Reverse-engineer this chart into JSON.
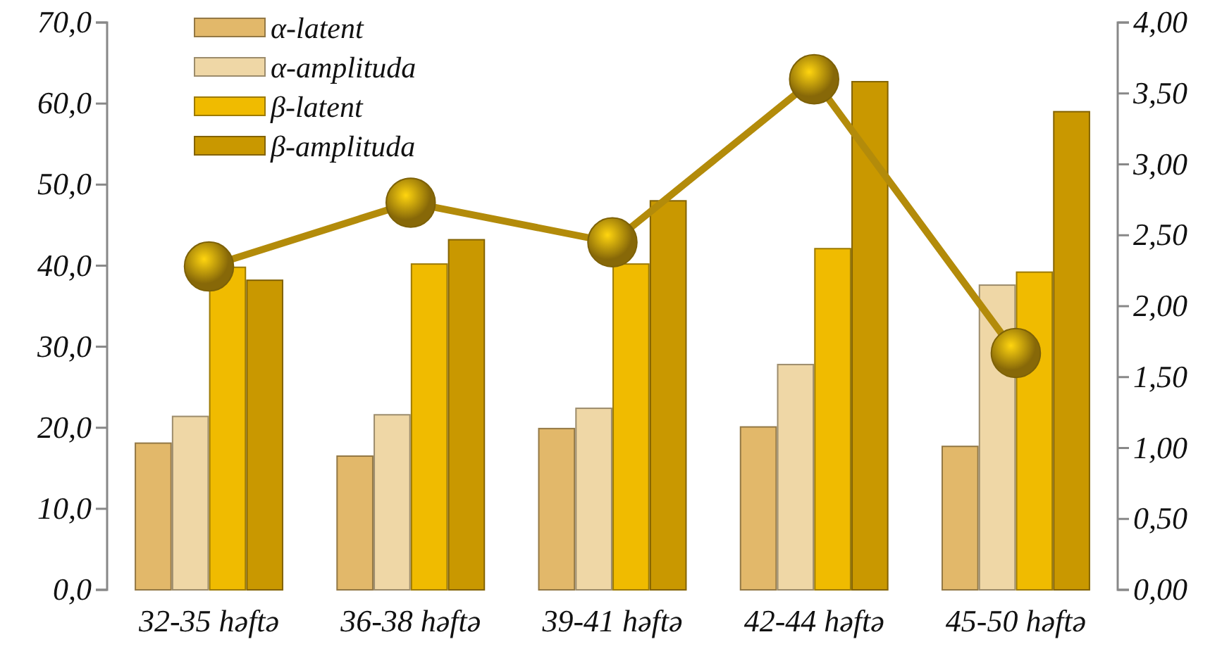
{
  "chart_data": {
    "type": "bar",
    "categories": [
      "32-35 həftə",
      "36-38 həftə",
      "39-41 həftə",
      "42-44 həftə",
      "45-50 həftə"
    ],
    "series": [
      {
        "name": "α-latent",
        "color": "#e2b86a",
        "values": [
          18.1,
          16.5,
          19.9,
          20.1,
          17.7
        ]
      },
      {
        "name": "α-amplituda",
        "color": "#efd7a6",
        "values": [
          21.4,
          21.6,
          22.4,
          27.8,
          37.6
        ]
      },
      {
        "name": "β-latent",
        "color": "#f0bb00",
        "values": [
          39.8,
          40.2,
          40.2,
          42.1,
          39.2
        ]
      },
      {
        "name": "β-amplituda",
        "color": "#c99800",
        "values": [
          38.2,
          43.2,
          48.0,
          62.7,
          59.0
        ]
      },
      {
        "type": "line",
        "axis": "y2",
        "color": "#b38b0a",
        "marker": "circle",
        "values": [
          2.28,
          2.73,
          2.45,
          3.6,
          1.67
        ]
      }
    ],
    "ylim": [
      0,
      70
    ],
    "yticks": [
      {
        "value": 0,
        "label": "0,0"
      },
      {
        "value": 10,
        "label": "10,0"
      },
      {
        "value": 20,
        "label": "20,0"
      },
      {
        "value": 30,
        "label": "30,0"
      },
      {
        "value": 40,
        "label": "40,0"
      },
      {
        "value": 50,
        "label": "50,0"
      },
      {
        "value": 60,
        "label": "60,0"
      },
      {
        "value": 70,
        "label": "70,0"
      }
    ],
    "y2lim": [
      0,
      4
    ],
    "y2ticks": [
      {
        "value": 0,
        "label": "0,00"
      },
      {
        "value": 0.5,
        "label": "0,50"
      },
      {
        "value": 1,
        "label": "1,00"
      },
      {
        "value": 1.5,
        "label": "1,50"
      },
      {
        "value": 2,
        "label": "2,00"
      },
      {
        "value": 2.5,
        "label": "2,50"
      },
      {
        "value": 3,
        "label": "3,00"
      },
      {
        "value": 3.5,
        "label": "3,50"
      },
      {
        "value": 4,
        "label": "4,00"
      }
    ],
    "grid": false,
    "legend": "top left"
  }
}
